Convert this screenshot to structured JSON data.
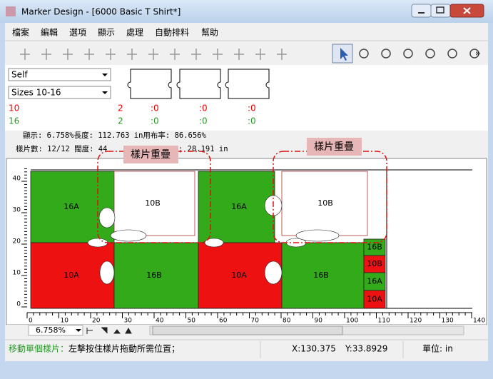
{
  "window": {
    "title": "Marker Design - [6000 Basic T Shirt*]"
  },
  "menu": [
    "檔案",
    "編輯",
    "選項",
    "顯示",
    "處理",
    "自動排料",
    "幫助"
  ],
  "panel": {
    "dropdowns": [
      "Self",
      "Sizes 10-16"
    ],
    "rows": [
      [
        "10",
        "2",
        ":0",
        ":0",
        ":0"
      ],
      [
        "16",
        "2",
        ":0",
        ":0",
        ":0"
      ]
    ]
  },
  "info": {
    "line1": "顯示:  6.758%長度:  112.763 in用布率:  86.656%",
    "line2a": "樣片數: 12/12 闊度: 44",
    "line2b": "; 28.191 in"
  },
  "annotations": [
    "樣片重疊",
    "樣片重疊"
  ],
  "marker": {
    "pieces": [
      "16A",
      "10B",
      "16A",
      "10B",
      "10A",
      "16B",
      "10A",
      "16B",
      "16B",
      "10B",
      "16A",
      "10A"
    ],
    "ruler_y": [
      40,
      30,
      20,
      10,
      0
    ],
    "ruler_x": [
      0,
      10,
      20,
      30,
      40,
      50,
      60,
      70,
      80,
      90,
      100,
      110,
      120,
      130,
      140
    ]
  },
  "zoom": "6.758%",
  "status": {
    "hint_label": "移動單個樣片：",
    "hint": "左擊按住樣片拖動所需位置；",
    "x": "X:130.375",
    "y": "Y:33.8929",
    "unit": "單位: in"
  }
}
